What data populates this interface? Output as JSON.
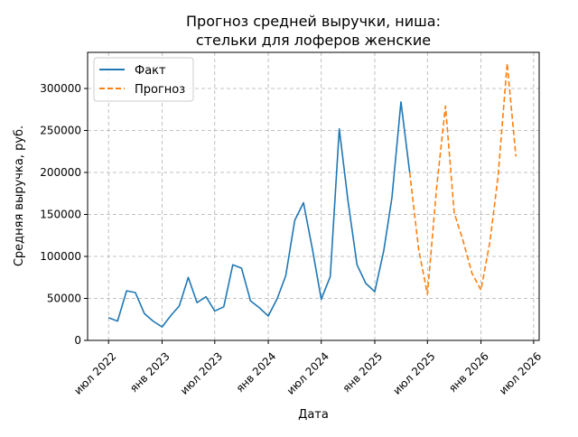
{
  "chart_data": {
    "type": "line",
    "title_lines": [
      "Прогноз средней выручки, ниша:",
      "стельки для лоферов женские"
    ],
    "xlabel": "Дата",
    "ylabel": "Средняя выручка, руб.",
    "x_ticks": [
      {
        "date": "2022-07-01",
        "label": "июл 2022"
      },
      {
        "date": "2023-01-01",
        "label": "янв 2023"
      },
      {
        "date": "2023-07-01",
        "label": "июл 2023"
      },
      {
        "date": "2024-01-01",
        "label": "янв 2024"
      },
      {
        "date": "2024-07-01",
        "label": "июл 2024"
      },
      {
        "date": "2025-01-01",
        "label": "янв 2025"
      },
      {
        "date": "2025-07-01",
        "label": "июл 2025"
      },
      {
        "date": "2026-01-01",
        "label": "янв 2026"
      },
      {
        "date": "2026-07-01",
        "label": "июл 2026"
      }
    ],
    "y_ticks": [
      0,
      50000,
      100000,
      150000,
      200000,
      250000,
      300000
    ],
    "y_tick_labels": [
      "0",
      "50000",
      "100000",
      "150000",
      "200000",
      "250000",
      "300000"
    ],
    "xlim": [
      "2022-04-20",
      "2026-07-20"
    ],
    "ylim": [
      0,
      343000
    ],
    "grid": true,
    "legend_position": "top-left",
    "series": [
      {
        "name": "Факт",
        "color": "#1f77b4",
        "style": "solid",
        "points": [
          {
            "x": "2022-07-01",
            "y": 27000
          },
          {
            "x": "2022-08-01",
            "y": 23000
          },
          {
            "x": "2022-09-01",
            "y": 59000
          },
          {
            "x": "2022-10-01",
            "y": 57000
          },
          {
            "x": "2022-11-01",
            "y": 32000
          },
          {
            "x": "2022-12-01",
            "y": 23000
          },
          {
            "x": "2023-01-01",
            "y": 16000
          },
          {
            "x": "2023-02-01",
            "y": 30000
          },
          {
            "x": "2023-03-01",
            "y": 41000
          },
          {
            "x": "2023-04-01",
            "y": 75000
          },
          {
            "x": "2023-05-01",
            "y": 45000
          },
          {
            "x": "2023-06-01",
            "y": 52000
          },
          {
            "x": "2023-07-01",
            "y": 35000
          },
          {
            "x": "2023-08-01",
            "y": 40000
          },
          {
            "x": "2023-09-01",
            "y": 90000
          },
          {
            "x": "2023-10-01",
            "y": 86000
          },
          {
            "x": "2023-11-01",
            "y": 47000
          },
          {
            "x": "2023-12-01",
            "y": 39000
          },
          {
            "x": "2024-01-01",
            "y": 29000
          },
          {
            "x": "2024-02-01",
            "y": 50000
          },
          {
            "x": "2024-03-01",
            "y": 77000
          },
          {
            "x": "2024-04-01",
            "y": 143000
          },
          {
            "x": "2024-05-01",
            "y": 164000
          },
          {
            "x": "2024-06-01",
            "y": 108000
          },
          {
            "x": "2024-07-01",
            "y": 49000
          },
          {
            "x": "2024-08-01",
            "y": 76000
          },
          {
            "x": "2024-09-01",
            "y": 252000
          },
          {
            "x": "2024-10-01",
            "y": 166000
          },
          {
            "x": "2024-11-01",
            "y": 90000
          },
          {
            "x": "2024-12-01",
            "y": 68000
          },
          {
            "x": "2025-01-01",
            "y": 58000
          },
          {
            "x": "2025-02-01",
            "y": 107000
          },
          {
            "x": "2025-03-01",
            "y": 170000
          },
          {
            "x": "2025-04-01",
            "y": 284000
          },
          {
            "x": "2025-05-01",
            "y": 200000
          }
        ]
      },
      {
        "name": "Прогноз",
        "color": "#ff7f0e",
        "style": "dashed",
        "points": [
          {
            "x": "2025-05-01",
            "y": 200000
          },
          {
            "x": "2025-06-01",
            "y": 108000
          },
          {
            "x": "2025-07-01",
            "y": 55000
          },
          {
            "x": "2025-08-01",
            "y": 180000
          },
          {
            "x": "2025-09-01",
            "y": 279000
          },
          {
            "x": "2025-10-01",
            "y": 152000
          },
          {
            "x": "2025-11-01",
            "y": 118000
          },
          {
            "x": "2025-12-01",
            "y": 80000
          },
          {
            "x": "2026-01-01",
            "y": 60000
          },
          {
            "x": "2026-02-01",
            "y": 118000
          },
          {
            "x": "2026-03-01",
            "y": 196000
          },
          {
            "x": "2026-04-01",
            "y": 330000
          },
          {
            "x": "2026-05-01",
            "y": 219000
          }
        ]
      }
    ]
  }
}
